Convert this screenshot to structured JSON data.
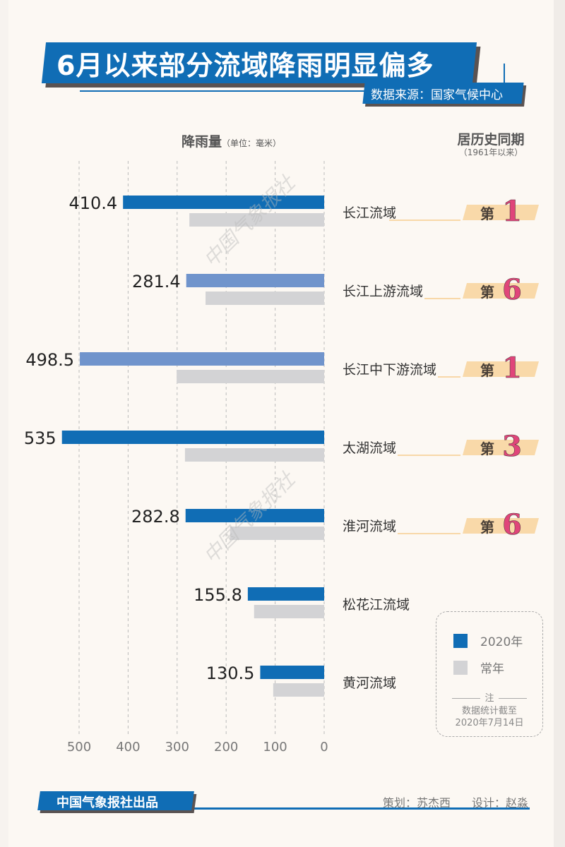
{
  "header": {
    "title": "6月以来部分流域降雨明显偏多",
    "source": "数据来源：国家气候中心"
  },
  "chart_data": {
    "type": "bar",
    "orientation": "horizontal-leftward",
    "title": "6月以来部分流域降雨明显偏多",
    "xlabel": "降雨量",
    "xunit": "（单位：毫米）",
    "xlim": [
      0,
      500
    ],
    "xticks": [
      500,
      400,
      300,
      200,
      100,
      0
    ],
    "grid": true,
    "categories": [
      "长江流域",
      "长江上游流域",
      "长江中下游流域",
      "太湖流域",
      "淮河流域",
      "松花江流域",
      "黄河流域"
    ],
    "series": [
      {
        "name": "2020年",
        "color": "#106db5",
        "values": [
          410.4,
          281.4,
          498.5,
          535,
          282.8,
          155.8,
          130.5
        ],
        "labels": [
          "410.4",
          "281.4",
          "498.5",
          "535",
          "282.8",
          "155.8",
          "130.5"
        ]
      },
      {
        "name": "常年",
        "color": "#d3d3d5",
        "values": [
          275,
          242,
          301,
          284,
          192,
          143,
          104
        ]
      }
    ],
    "highlight_color": "#7094cc",
    "highlighted": [
      false,
      true,
      true,
      false,
      false,
      false,
      false
    ],
    "rank_header": "居历史同期",
    "rank_sub": "（1961年以来）",
    "rank_prefix": "第",
    "ranks": [
      "1",
      "6",
      "1",
      "3",
      "6",
      null,
      null
    ],
    "rank_color": "#e0457a",
    "legend_placement": "bottom-right",
    "note_title": "注",
    "note_lines": [
      "数据统计截至",
      "2020年7月14日"
    ]
  },
  "watermark": "中国气象报社",
  "footer": {
    "publisher": "中国气象报社出品",
    "planner": "策划：苏杰西",
    "designer": "设计：赵淼"
  }
}
